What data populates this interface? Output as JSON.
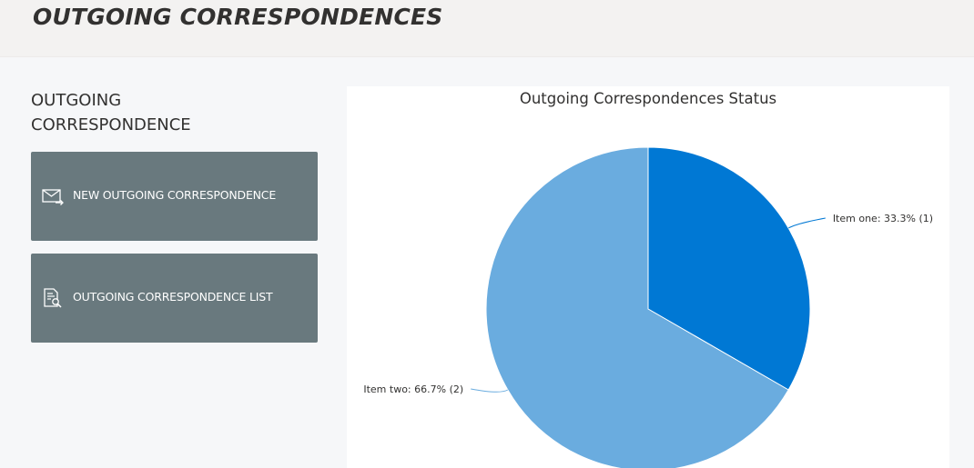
{
  "header": {
    "title": "OUTGOING CORRESPONDENCES"
  },
  "sidebar": {
    "heading": "OUTGOING CORRESPONDENCE",
    "tiles": [
      {
        "label": "NEW OUTGOING CORRESPONDENCE",
        "icon": "mail-send-icon"
      },
      {
        "label": "OUTGOING CORRESPONDENCE LIST",
        "icon": "document-search-icon"
      }
    ]
  },
  "colors": {
    "tile": "#69797e",
    "slice_one": "#0078d4",
    "slice_two": "#6aacdf"
  },
  "chart_data": {
    "type": "pie",
    "title": "Outgoing Correspondences Status",
    "slices": [
      {
        "name": "Item one",
        "value": 1,
        "percent": 33.3,
        "label": "Item one: 33.3% (1)",
        "color": "#0078d4"
      },
      {
        "name": "Item two",
        "value": 2,
        "percent": 66.7,
        "label": "Item two: 66.7% (2)",
        "color": "#6aacdf"
      }
    ],
    "legend": "none"
  }
}
